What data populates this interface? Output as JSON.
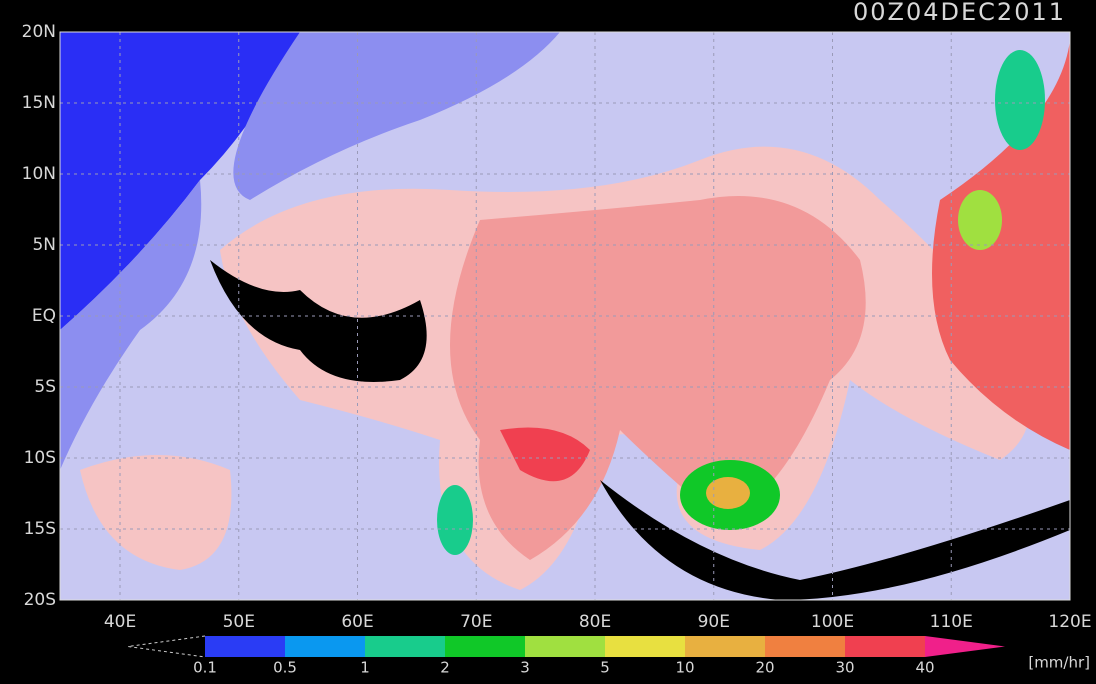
{
  "title": "00Z04DEC2011",
  "lat_labels": [
    "20N",
    "15N",
    "10N",
    "5N",
    "EQ",
    "5S",
    "10S",
    "15S",
    "20S"
  ],
  "lon_labels": [
    "40E",
    "50E",
    "60E",
    "70E",
    "80E",
    "90E",
    "100E",
    "110E",
    "120E"
  ],
  "colorbar": {
    "labels": [
      "0.1",
      "0.5",
      "1",
      "2",
      "3",
      "5",
      "10",
      "20",
      "30",
      "40"
    ],
    "colors": [
      "#2a3cf5",
      "#0a98f0",
      "#18cc8c",
      "#10c828",
      "#a0e040",
      "#e8e040",
      "#e8b040",
      "#f08040",
      "#f04050"
    ],
    "over_color": "#f0208a",
    "unit": "[mm/hr]"
  }
}
